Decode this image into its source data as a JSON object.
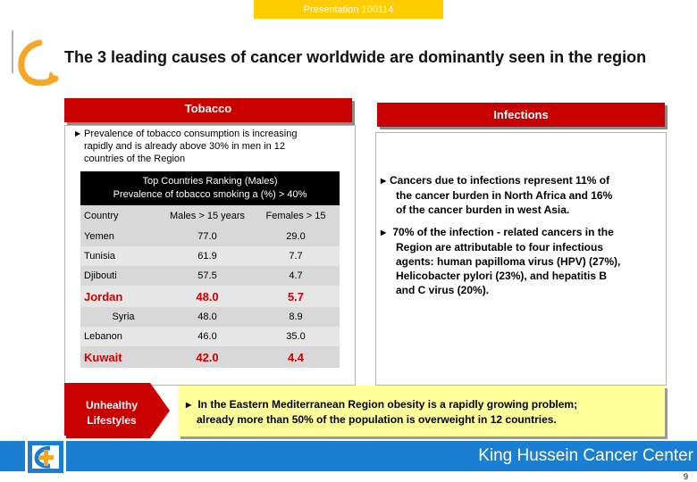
{
  "header": {
    "presentation_tag": "Presentation 100114"
  },
  "title": "The 3 leading causes of cancer worldwide are dominantly seen in the region",
  "tobacco": {
    "tab_label": "Tobacco",
    "bullet_line1": "Prevalence of tobacco consumption is increasing",
    "bullet_line2": "rapidly and is already above 30%   in men in 12",
    "bullet_line3": "countries of the Region",
    "table": {
      "heading_line1": "Top Countries Ranking (Males)",
      "heading_line2": "Prevalence of tobacco smoking a (%) > 40%",
      "columns": [
        "Country",
        "Males > 15 years",
        "Females > 15"
      ],
      "rows": [
        {
          "country": "Yemen",
          "males": "77.0",
          "females": "29.0",
          "highlight": false,
          "center": false
        },
        {
          "country": "Tunisia",
          "males": "61.9",
          "females": "7.7",
          "highlight": false,
          "center": false
        },
        {
          "country": "Djibouti",
          "males": "57.5",
          "females": "4.7",
          "highlight": false,
          "center": false
        },
        {
          "country": "Jordan",
          "males": "48.0",
          "females": "5.7",
          "highlight": true,
          "center": false
        },
        {
          "country": "Syria",
          "males": "48.0",
          "females": "8.9",
          "highlight": false,
          "center": true
        },
        {
          "country": "Lebanon",
          "males": "46.0",
          "females": "35.0",
          "highlight": false,
          "center": false
        },
        {
          "country": "Kuwait",
          "males": "42.0",
          "females": "4.4",
          "highlight": true,
          "center": false
        }
      ]
    }
  },
  "infections": {
    "tab_label": "Infections",
    "bullet1_lines": [
      "Cancers due to infections represent 11% of",
      "the cancer burden in North Africa and 16%",
      "of the cancer burden in west Asia."
    ],
    "bullet2_lines": [
      "70% of the infection - related cancers in the",
      "Region are attributable to four infectious",
      "agents: human papilloma virus (HPV) (27%),",
      "Helicobacter pylori (23%), and hepatitis B",
      "and C virus (20%)."
    ]
  },
  "lifestyle": {
    "label_line1": "Unhealthy",
    "label_line2": "Lifestyles",
    "text_line1": "In the Eastern Mediterranean Region obesity is a rapidly growing problem;",
    "text_line2": "already more than 50% of the population is overweight in 12 countries."
  },
  "footer": {
    "center_name": "King Hussein Cancer Center",
    "page_number": "9"
  },
  "colors": {
    "accent_red": "#c80000",
    "footer_blue": "#1a7fd2",
    "tag_yellow": "#ffcc00",
    "note_yellow": "#ffff99"
  }
}
